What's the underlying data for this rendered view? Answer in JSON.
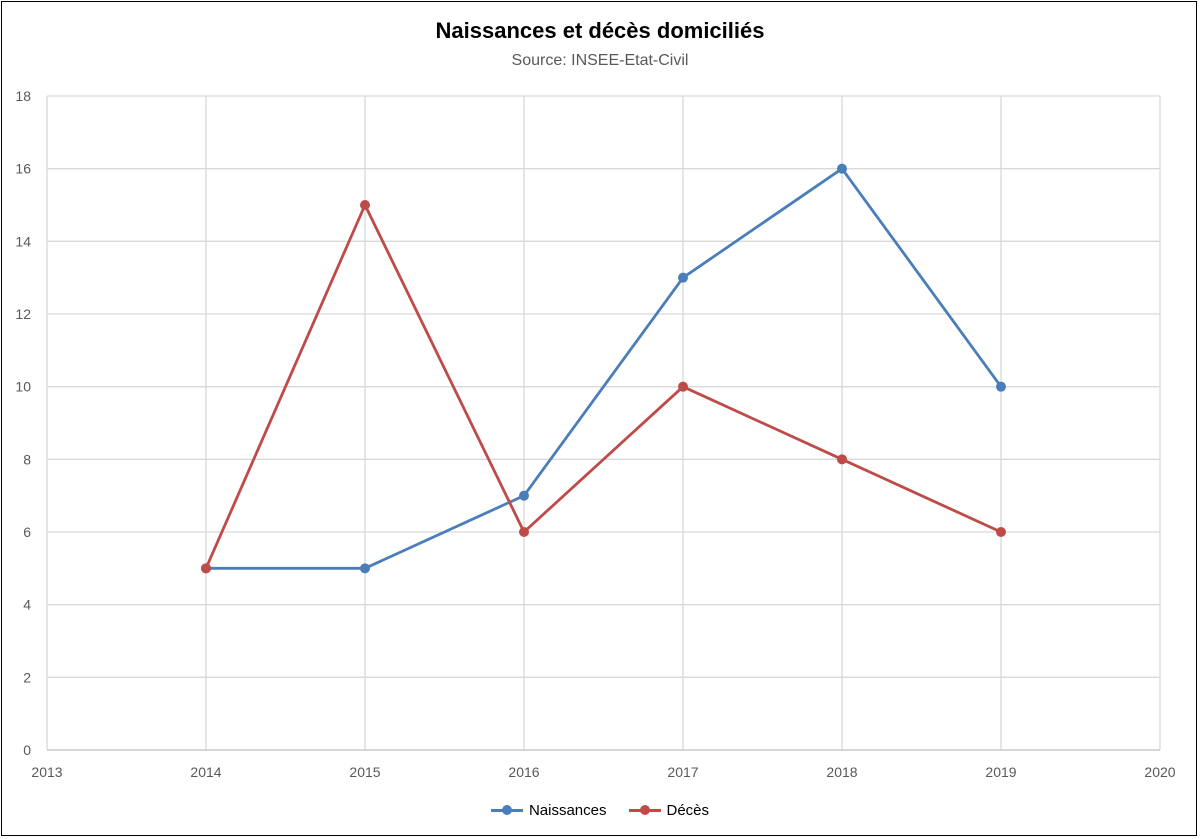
{
  "chart_data": {
    "type": "line",
    "title": "Naissances et décès domiciliés",
    "subtitle": "Source: INSEE-Etat-Civil",
    "xlim": [
      2013,
      2020
    ],
    "ylim": [
      0,
      18
    ],
    "x_ticks": [
      "2013",
      "2014",
      "2015",
      "2016",
      "2017",
      "2018",
      "2019",
      "2020"
    ],
    "y_ticks": [
      "0",
      "2",
      "4",
      "6",
      "8",
      "10",
      "12",
      "14",
      "16",
      "18"
    ],
    "x": [
      2014,
      2015,
      2016,
      2017,
      2018,
      2019
    ],
    "series": [
      {
        "name": "Naissances",
        "color": "#4a7ebb",
        "values": [
          5,
          5,
          7,
          13,
          16,
          10
        ]
      },
      {
        "name": "Décès",
        "color": "#be4b48",
        "values": [
          5,
          15,
          6,
          10,
          8,
          6
        ]
      }
    ],
    "grid": true,
    "legend_position": "bottom"
  }
}
